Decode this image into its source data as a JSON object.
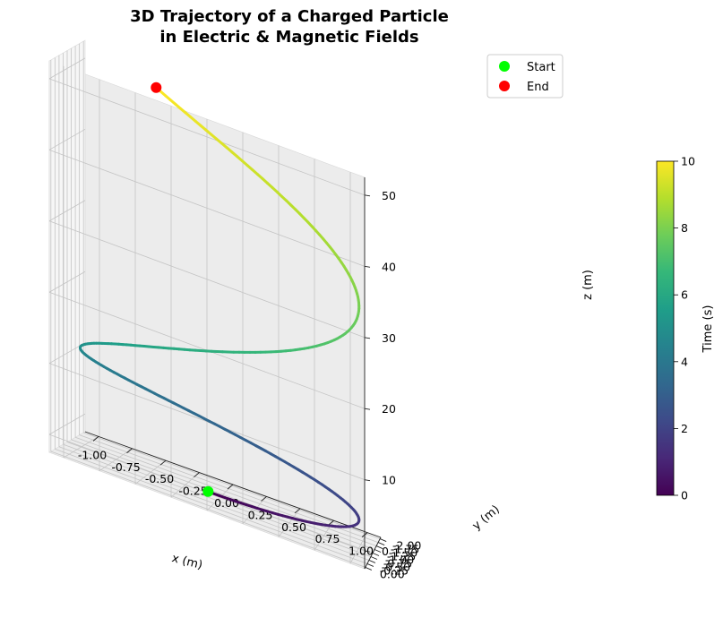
{
  "chart_data": {
    "type": "line",
    "title_lines": [
      "3D Trajectory of a Charged Particle",
      "in Electric & Magnetic Fields"
    ],
    "xlabel": "x (m)",
    "ylabel": "y (m)",
    "zlabel": "z (m)",
    "xlim": [
      -1.1,
      1.1
    ],
    "ylim": [
      -2.1,
      0.1
    ],
    "zlim": [
      -2.5,
      52.5
    ],
    "x_ticks": [
      "-1.00",
      "-0.75",
      "-0.50",
      "-0.25",
      "0.00",
      "0.25",
      "0.50",
      "0.75",
      "1.00"
    ],
    "y_ticks": [
      "0.00",
      "-0.25",
      "-0.50",
      "-0.75",
      "-1.00",
      "-1.25",
      "-1.50",
      "-1.75",
      "-2.00"
    ],
    "z_ticks": [
      "0",
      "10",
      "20",
      "30",
      "40",
      "50"
    ],
    "trajectory": {
      "t_range": [
        0,
        10
      ],
      "x": "sin(t)",
      "y": "cos(t) - 1",
      "z": "0.5 * t^2",
      "color_by": "time",
      "colormap": "viridis"
    },
    "points": [
      {
        "label": "Start",
        "x": 0.0,
        "y": 0.0,
        "z": 0.0,
        "color": "#00ff00"
      },
      {
        "label": "End",
        "x": -0.544,
        "y": -1.839,
        "z": 50.0,
        "color": "#ff0000"
      }
    ],
    "legend_position": "upper-right",
    "colorbar": {
      "label": "Time (s)",
      "range": [
        0,
        10
      ],
      "ticks": [
        "0",
        "2",
        "4",
        "6",
        "8",
        "10"
      ]
    },
    "grid": true
  }
}
